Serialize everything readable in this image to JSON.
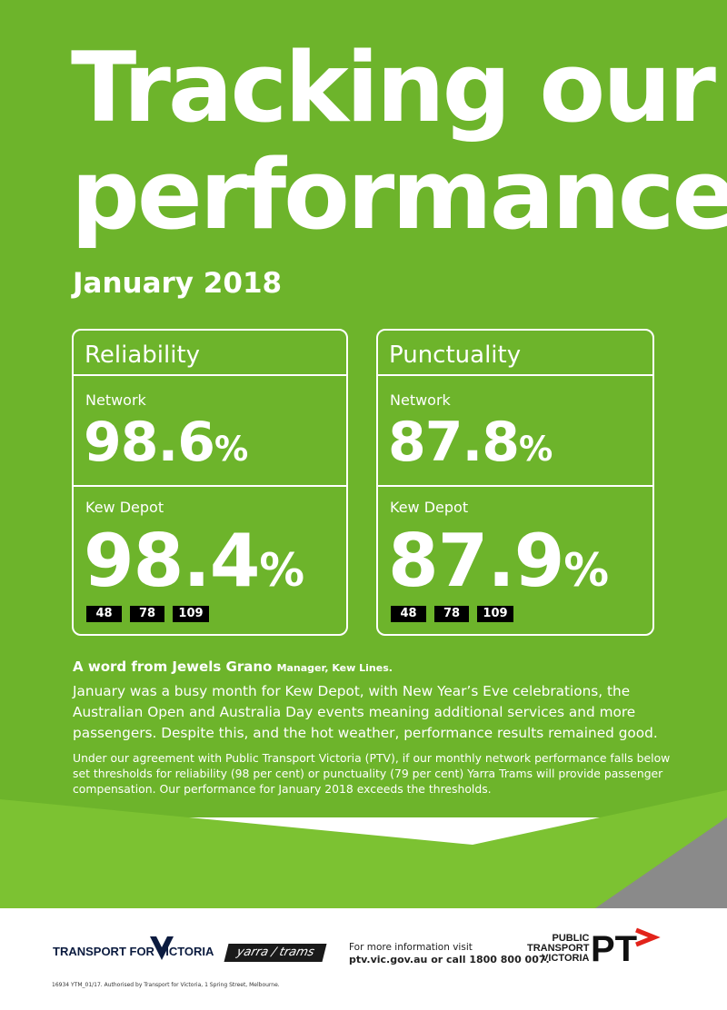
{
  "title": {
    "line1": "Tracking our",
    "line2": "performance"
  },
  "month": "January 2018",
  "boxes": [
    {
      "heading": "Reliability",
      "network_label": "Network",
      "network_value": "98.6",
      "depot_label": "Kew Depot",
      "depot_value": "98.4",
      "unit": "%",
      "routes": [
        "48",
        "78",
        "109"
      ]
    },
    {
      "heading": "Punctuality",
      "network_label": "Network",
      "network_value": "87.8",
      "depot_label": "Kew Depot",
      "depot_value": "87.9",
      "unit": "%",
      "routes": [
        "48",
        "78",
        "109"
      ]
    }
  ],
  "word": {
    "lead": "A word from Jewels Grano",
    "role": "Manager, Kew Lines."
  },
  "paragraph1": "January was a busy month for Kew Depot, with New Year’s Eve celebrations, the Australian Open and Australia Day events meaning additional services and more passengers. Despite this, and the hot weather, performance results remained good.",
  "paragraph2": "Under our agreement with Public Transport Victoria (PTV), if our monthly network performance falls below set thresholds for reliability (98 per cent) or punctuality (79 per cent) Yarra Trams will provide passenger compensation. Our performance for January 2018 exceeds the thresholds.",
  "footer": {
    "tfv_logo_text": "TRANSPORT FOR VICTORIA",
    "yarra_logo_text": "yarra / trams",
    "info_line1": "For more information visit",
    "info_line2": "ptv.vic.gov.au or call 1800 800 007.",
    "ptv_line1": "PUBLIC",
    "ptv_line2": "TRANSPORT",
    "ptv_line3": "VICTORIA",
    "pt_mark": "PT",
    "legal": "16934 YTM_01/17. Authorised by Transport for Victoria, 1 Spring Street, Melbourne."
  },
  "colors": {
    "green": "#6db42b",
    "green_light": "#7cc232",
    "navy": "#0b1b3f",
    "red": "#e2231a"
  }
}
